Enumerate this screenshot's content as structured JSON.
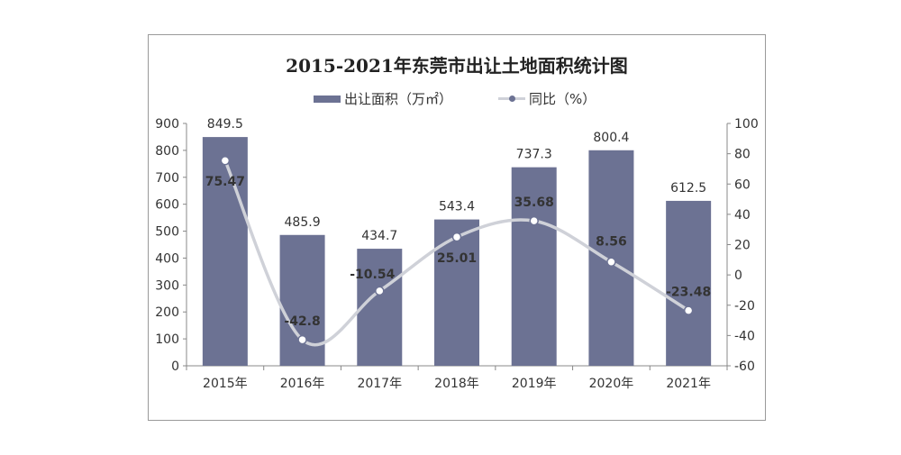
{
  "chart_data": {
    "type": "bar",
    "title": "2015-2021年东莞市出让土地面积统计图",
    "categories": [
      "2015年",
      "2016年",
      "2017年",
      "2018年",
      "2019年",
      "2020年",
      "2021年"
    ],
    "series": [
      {
        "name": "出让面积（万㎡）",
        "type": "bar",
        "axis": "left",
        "values": [
          849.5,
          485.9,
          434.7,
          543.4,
          737.3,
          800.4,
          612.5
        ],
        "labels": [
          "849.5",
          "485.9",
          "434.7",
          "543.4",
          "737.3",
          "800.4",
          "612.5"
        ],
        "color": "#6c7293"
      },
      {
        "name": "同比（%）",
        "type": "line",
        "axis": "right",
        "values": [
          75.47,
          -42.8,
          -10.54,
          25.01,
          35.68,
          8.56,
          -23.48
        ],
        "labels": [
          "75.47",
          "-42.8",
          "-10.54",
          "25.01",
          "35.68",
          "8.56",
          "-23.48"
        ],
        "color": "#cfd1d8",
        "marker_color": "#6c7293"
      }
    ],
    "y_left": {
      "min": 0,
      "max": 900,
      "ticks": [
        "900",
        "800",
        "700",
        "600",
        "500",
        "400",
        "300",
        "200",
        "100",
        "0"
      ]
    },
    "y_right": {
      "min": -60,
      "max": 100,
      "ticks": [
        "100",
        "80",
        "60",
        "40",
        "20",
        "0",
        "-20",
        "-40",
        "-60"
      ]
    },
    "legend_position": "top",
    "grid": false
  }
}
